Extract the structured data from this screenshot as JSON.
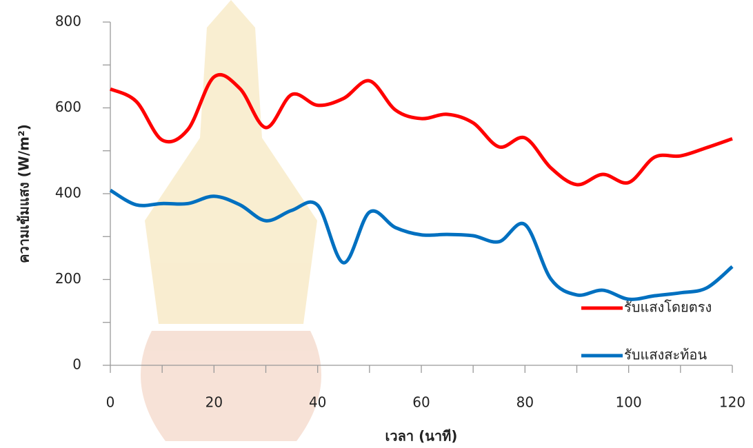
{
  "chart_data": {
    "type": "line",
    "x_label": "เวลา (นาที)",
    "y_label": "ความเข้มแสง (W/m²)",
    "x": [
      0,
      5,
      10,
      15,
      20,
      25,
      30,
      35,
      40,
      45,
      50,
      55,
      60,
      65,
      70,
      75,
      80,
      85,
      90,
      95,
      100,
      105,
      110,
      115,
      120
    ],
    "series": [
      {
        "name": "รับแสงโดยตรง",
        "color": "#ff0000",
        "values": [
          644,
          615,
          525,
          550,
          672,
          645,
          554,
          631,
          606,
          622,
          663,
          595,
          575,
          585,
          565,
          509,
          530,
          460,
          421,
          445,
          426,
          485,
          488,
          507,
          528
        ]
      },
      {
        "name": "รับแสงสะท้อน",
        "color": "#0070c0",
        "values": [
          408,
          374,
          377,
          377,
          394,
          374,
          337,
          361,
          373,
          239,
          357,
          321,
          304,
          305,
          302,
          288,
          328,
          201,
          164,
          175,
          154,
          162,
          169,
          180,
          230
        ]
      }
    ],
    "xlim": [
      0,
      120
    ],
    "xticks": [
      0,
      20,
      40,
      60,
      80,
      100,
      120
    ],
    "xminorticks": [
      10,
      30,
      50,
      70,
      90,
      110
    ],
    "ylim": [
      0,
      800
    ],
    "yticks": [
      0,
      200,
      400,
      600,
      800
    ],
    "yminorticks": [
      100,
      300,
      500,
      700
    ],
    "legend": "lower right"
  }
}
